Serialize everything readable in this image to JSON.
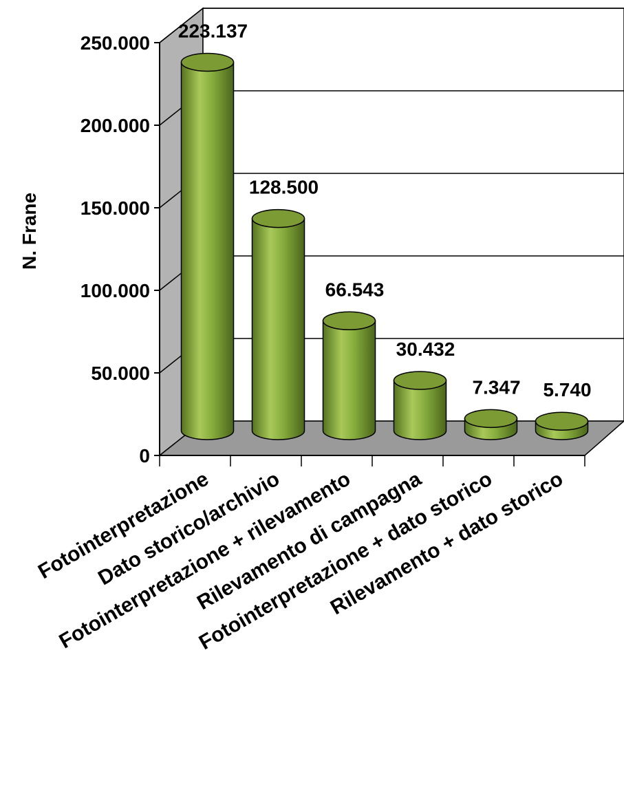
{
  "chart_data": {
    "type": "bar",
    "style": "3d-cylinder",
    "ylabel": "N. Frane",
    "xlabel": "",
    "ylim": [
      0,
      250000
    ],
    "yticks": [
      {
        "value": 0,
        "label": "0"
      },
      {
        "value": 50000,
        "label": "50.000"
      },
      {
        "value": 100000,
        "label": "100.000"
      },
      {
        "value": 150000,
        "label": "150.000"
      },
      {
        "value": 200000,
        "label": "200.000"
      },
      {
        "value": 250000,
        "label": "250.000"
      }
    ],
    "categories": [
      "Fotointerpretazione",
      "Dato storico/archivio",
      "Fotointerpretazione + rilevamento",
      "Rilevamento di campagna",
      "Fotointerpretazione + dato storico",
      "Rilevamento + dato storico"
    ],
    "values": [
      223137,
      128500,
      66543,
      30432,
      7347,
      5740
    ],
    "value_labels": [
      "223.137",
      "128.500",
      "66.543",
      "30.432",
      "7.347",
      "5.740"
    ],
    "grid": true,
    "legend": "none"
  },
  "colors": {
    "bar_main": "#7fa33a",
    "bar_light": "#b5d06a",
    "bar_dark": "#4e6a1c",
    "floor": "#9a9a9a",
    "side_wall": "#b3b3b3",
    "back_wall": "#ffffff"
  }
}
